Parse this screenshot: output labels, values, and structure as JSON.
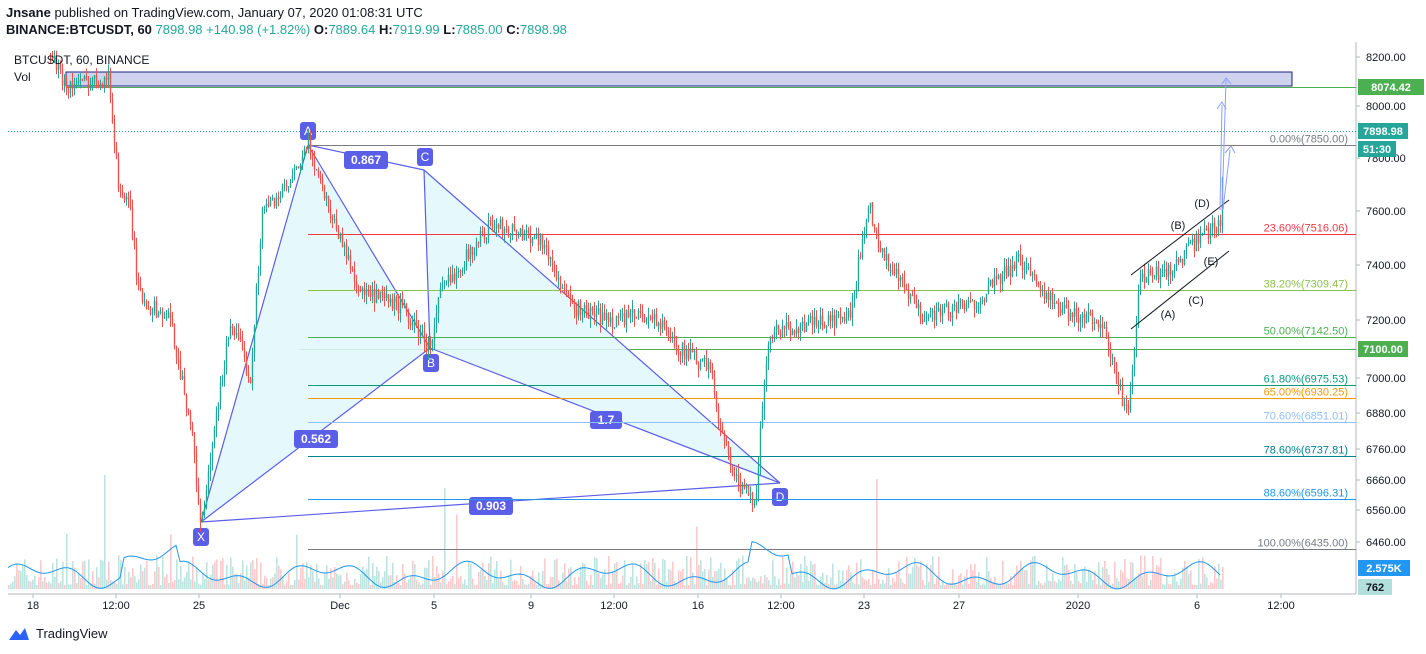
{
  "header": {
    "publisher": "Jnsane",
    "published_text": "published on TradingView.com, January 07, 2020 01:08:31 UTC",
    "symbol": "BINANCE:BTCUSDT, 60",
    "last": "7898.98",
    "change": "+140.98 (+1.82%)",
    "open_label": "O:",
    "open": "7889.64",
    "high_label": "H:",
    "high": "7919.99",
    "low_label": "L:",
    "low": "7885.00",
    "close_label": "C:",
    "close": "7898.98"
  },
  "legend": {
    "title": "BTCUSDT, 60, BINANCE",
    "vol": "Vol"
  },
  "footer": {
    "brand": "TradingView"
  },
  "chart_data": {
    "type": "candlestick",
    "y_axis_ticks": [
      "8200.00",
      "8000.00",
      "7800.00",
      "7600.00",
      "7400.00",
      "7200.00",
      "7000.00",
      "6880.00",
      "6760.00",
      "6660.00",
      "6560.00",
      "6460.00"
    ],
    "x_axis_ticks": [
      "18",
      "12:00",
      "25",
      "Dec",
      "5",
      "9",
      "12:00",
      "16",
      "12:00",
      "23",
      "27",
      "2020",
      "6",
      "12:00"
    ],
    "price_badges": [
      {
        "label": "8074.42",
        "color": "#4caf50"
      },
      {
        "label": "7898.98",
        "color": "#26a69a"
      },
      {
        "label": "51:30",
        "color": "#26a69a"
      },
      {
        "label": "7100.00",
        "color": "#4caf50"
      },
      {
        "label": "2.575K",
        "color": "#2196f3"
      },
      {
        "label": "762",
        "color": "#b2dfdb"
      }
    ],
    "fib_levels": [
      {
        "label": "0.00%(7850.00)",
        "value": 7850.0,
        "color": "#787b86"
      },
      {
        "label": "23.60%(7516.06)",
        "value": 7516.06,
        "color": "#f23645"
      },
      {
        "label": "38.20%(7309.47)",
        "value": 7309.47,
        "color": "#8bc34a"
      },
      {
        "label": "50.00%(7142.50)",
        "value": 7142.5,
        "color": "#4caf50"
      },
      {
        "label": "61.80%(6975.53)",
        "value": 6975.53,
        "color": "#089981"
      },
      {
        "label": "65.00%(6930.25)",
        "value": 6930.25,
        "color": "#ff9800"
      },
      {
        "label": "70.60%(6851.01)",
        "value": 6851.01,
        "color": "#90bff9"
      },
      {
        "label": "78.60%(6737.81)",
        "value": 6737.81,
        "color": "#00838f"
      },
      {
        "label": "88.60%(6596.31)",
        "value": 6596.31,
        "color": "#2196f3"
      },
      {
        "label": "100.00%(6435.00)",
        "value": 6435.0,
        "color": "#787b86"
      }
    ],
    "harmonic_points": [
      "X",
      "A",
      "B",
      "C",
      "D"
    ],
    "harmonic_ratios": [
      "0.867",
      "0.562",
      "1.7",
      "0.903"
    ],
    "wave_labels": [
      "(A)",
      "(B)",
      "(C)",
      "(D)",
      "(E)"
    ],
    "colors": {
      "up": "#26a69a",
      "down": "#ef5350",
      "pattern": "#5b5fe8",
      "pattern_fill": "#e0f7fa"
    }
  }
}
